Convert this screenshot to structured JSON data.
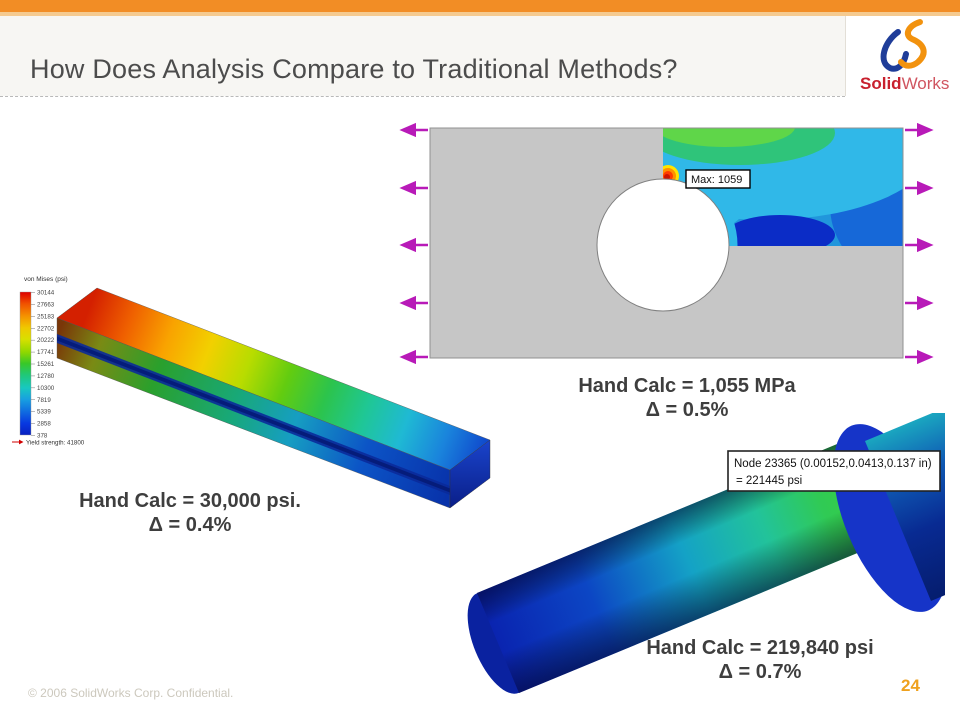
{
  "slide": {
    "title": "How Does Analysis Compare to Traditional Methods?",
    "footer": "© 2006 SolidWorks Corp. Confidential.",
    "page_number": "24",
    "logo": {
      "brand_bold": "Solid",
      "brand_light": "Works"
    }
  },
  "legend": {
    "title": "von Mises (psi)",
    "ticks": [
      "30144",
      "27663",
      "25183",
      "22702",
      "20222",
      "17741",
      "15261",
      "12780",
      "10300",
      "7819",
      "5339",
      "2858",
      "378"
    ],
    "yield_label": "Yield strength: 41800"
  },
  "beam": {
    "hand_calc_line1": "Hand Calc = 30,000 psi.",
    "hand_calc_line2": "Δ = 0.4%"
  },
  "plate": {
    "max_label": "Max: 1059",
    "hand_calc_line1": "Hand Calc = 1,055 MPa",
    "hand_calc_line2": "Δ = 0.5%"
  },
  "shaft": {
    "node_label_line1": "Node 23365 (0.00152,0.0413,0.137 in)",
    "node_label_line2": "= 221445  psi",
    "hand_calc_line1": "Hand Calc = 219,840 psi",
    "hand_calc_line2": "Δ = 0.7%"
  },
  "colors": {
    "accent_orange": "#F28D25",
    "accent_orange_light": "#F5CA8F",
    "title_gray": "#4C4C4C",
    "arrow_magenta": "#B81AB8",
    "page_number_orange": "#EFA11E",
    "logo_red": "#C8202E",
    "plate_gray": "#C6C6C6"
  }
}
